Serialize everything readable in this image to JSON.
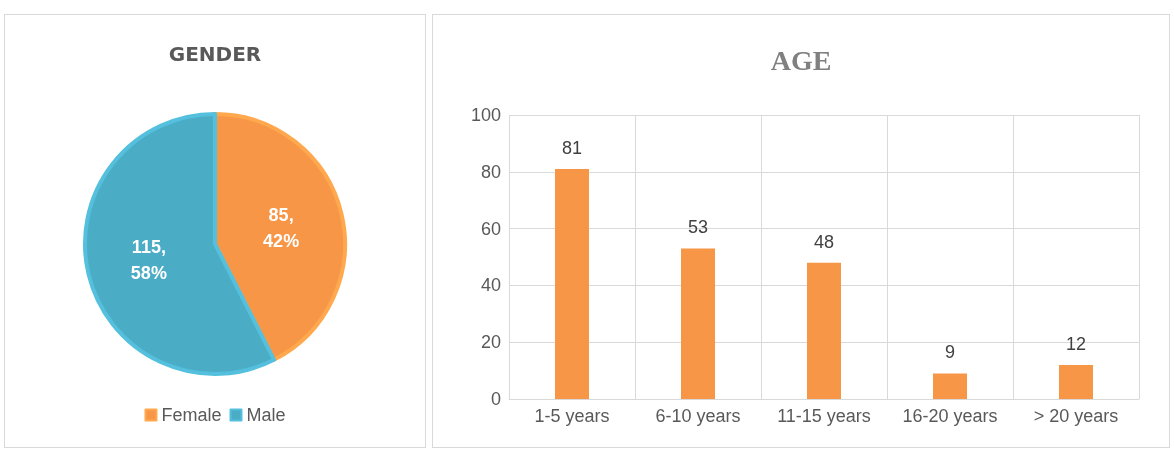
{
  "chart_data": [
    {
      "type": "pie",
      "title": "GENDER",
      "categories": [
        "Female",
        "Male"
      ],
      "values": [
        85,
        115
      ],
      "colors": [
        "#f79646",
        "#4bacc6"
      ],
      "value_labels": [
        "85,\n42%",
        "115,\n58%"
      ],
      "legend": "bottom"
    },
    {
      "type": "bar",
      "title": "AGE",
      "categories": [
        "1-5 years",
        "6-10 years",
        "11-15 years",
        "16-20 years",
        "> 20 years"
      ],
      "values": [
        81,
        53,
        48,
        9,
        12
      ],
      "color": "#f79646",
      "ylim": [
        0,
        100
      ],
      "yticks": [
        0,
        20,
        40,
        60,
        80,
        100
      ],
      "grid": true,
      "data_labels": true
    }
  ]
}
